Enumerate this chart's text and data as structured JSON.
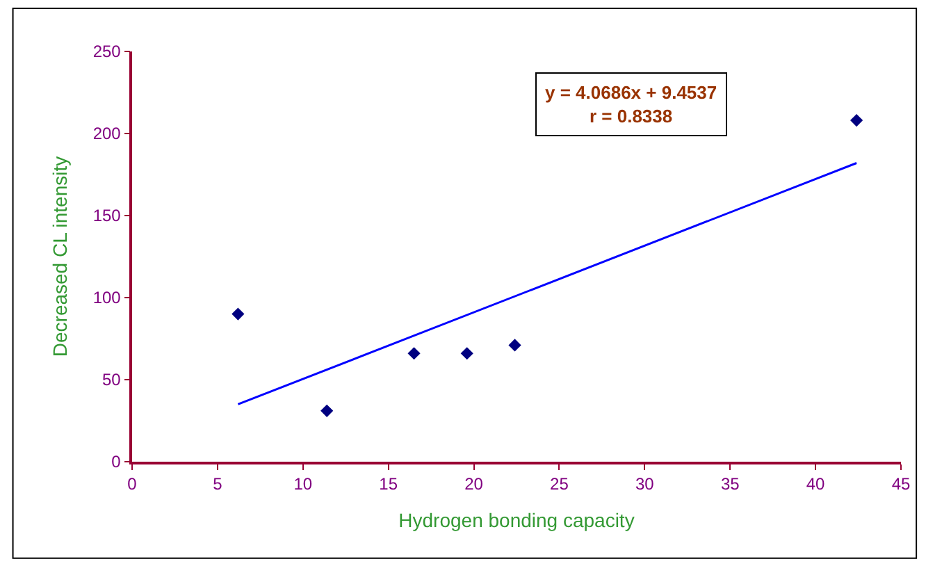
{
  "chart_data": {
    "type": "scatter",
    "xlabel": "Hydrogen bonding capacity",
    "ylabel": "Decreased CL intensity",
    "annotations": [
      "y = 4.0686x + 9.4537\nr = 0.8338"
    ],
    "xlim": [
      0,
      45
    ],
    "xticks": [
      0,
      5,
      10,
      15,
      20,
      25,
      30,
      35,
      40,
      45
    ],
    "ylim": [
      0,
      250
    ],
    "yticks": [
      0,
      50,
      100,
      150,
      200,
      250
    ],
    "grid": false,
    "marker": "diamond",
    "series": [
      {
        "color": "#000080",
        "x": [
          6.2,
          11.4,
          16.5,
          19.6,
          22.4,
          42.4
        ],
        "values": [
          90,
          31,
          66,
          66,
          71,
          208
        ]
      },
      {
        "type": "line",
        "marker": "none",
        "color": "#0000ff",
        "x": [
          6.2,
          42.4
        ],
        "values": [
          35,
          182
        ]
      }
    ]
  }
}
